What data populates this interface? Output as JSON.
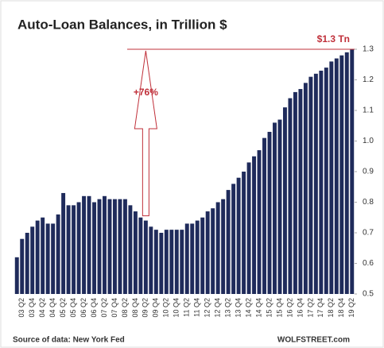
{
  "chart_data": {
    "type": "bar",
    "title": "Auto-Loan Balances, in Trillion $",
    "categories": [
      null,
      "03 Q2",
      null,
      "03 Q4",
      null,
      "04 Q2",
      null,
      "04 Q4",
      null,
      "05 Q2",
      null,
      "05 Q4",
      null,
      "06 Q2",
      null,
      "06 Q4",
      null,
      "07 Q2",
      null,
      "07 Q4",
      null,
      "08 Q2",
      null,
      "08 Q4",
      null,
      "09 Q2",
      null,
      "09 Q4",
      null,
      "10 Q2",
      null,
      "10 Q4",
      null,
      "11 Q2",
      null,
      "11 Q4",
      null,
      "12 Q2",
      null,
      "12 Q4",
      null,
      "13 Q2",
      null,
      "13 Q4",
      null,
      "14 Q2",
      null,
      "14 Q4",
      null,
      "15 Q2",
      null,
      "15 Q4",
      null,
      "16 Q2",
      null,
      "16 Q4",
      null,
      "17 Q2",
      null,
      "17 Q4",
      null,
      "18 Q2",
      null,
      "18 Q4",
      null,
      "19 Q2"
    ],
    "values": [
      0.62,
      0.68,
      0.7,
      0.72,
      0.74,
      0.75,
      0.73,
      0.73,
      0.76,
      0.83,
      0.79,
      0.79,
      0.8,
      0.82,
      0.82,
      0.8,
      0.81,
      0.82,
      0.81,
      0.81,
      0.81,
      0.81,
      0.79,
      0.77,
      0.75,
      0.74,
      0.72,
      0.71,
      0.7,
      0.71,
      0.71,
      0.71,
      0.71,
      0.73,
      0.73,
      0.74,
      0.75,
      0.77,
      0.78,
      0.8,
      0.81,
      0.84,
      0.86,
      0.88,
      0.9,
      0.93,
      0.95,
      0.97,
      1.01,
      1.03,
      1.06,
      1.07,
      1.11,
      1.14,
      1.16,
      1.17,
      1.19,
      1.21,
      1.22,
      1.23,
      1.24,
      1.26,
      1.27,
      1.28,
      1.29,
      1.3
    ],
    "color": "#1f2b5b",
    "ylim": [
      0.5,
      1.3
    ],
    "yticks": [
      0.5,
      0.6,
      0.7,
      0.8,
      0.9,
      {
        "value": 1,
        "label": "1.0"
      },
      1.1,
      1.2,
      1.3
    ],
    "annotations": {
      "peak": "$1.3 Tn",
      "change": "+76%"
    },
    "source": "Source of data: New York Fed",
    "credit": "WOLFSTREET.com"
  }
}
